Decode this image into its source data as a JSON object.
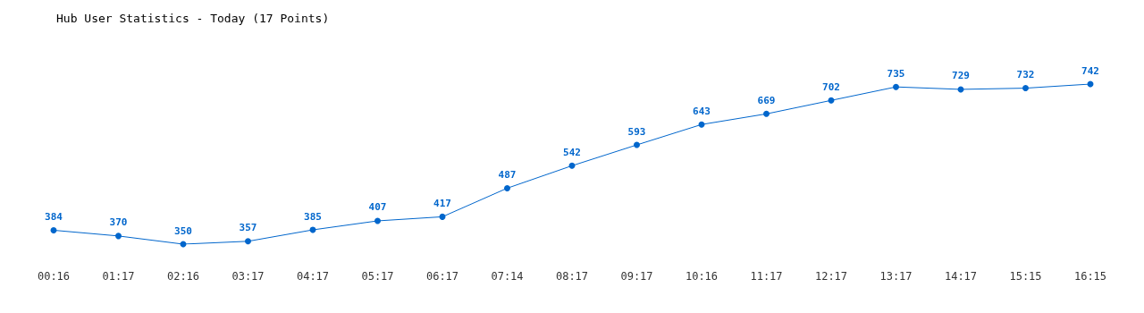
{
  "chart_data": {
    "type": "line",
    "title": "Hub User Statistics - Today (17 Points)",
    "categories": [
      "00:16",
      "01:17",
      "02:16",
      "03:17",
      "04:17",
      "05:17",
      "06:17",
      "07:14",
      "08:17",
      "09:17",
      "10:16",
      "11:17",
      "12:17",
      "13:17",
      "14:17",
      "15:15",
      "16:15"
    ],
    "series": [
      {
        "color": "#0066cc",
        "values": [
          384,
          370,
          350,
          357,
          385,
          407,
          417,
          487,
          542,
          593,
          643,
          669,
          702,
          735,
          729,
          732,
          742
        ]
      }
    ],
    "data_labels": true,
    "marker": "circle",
    "line_style": "solid",
    "grid": false
  }
}
